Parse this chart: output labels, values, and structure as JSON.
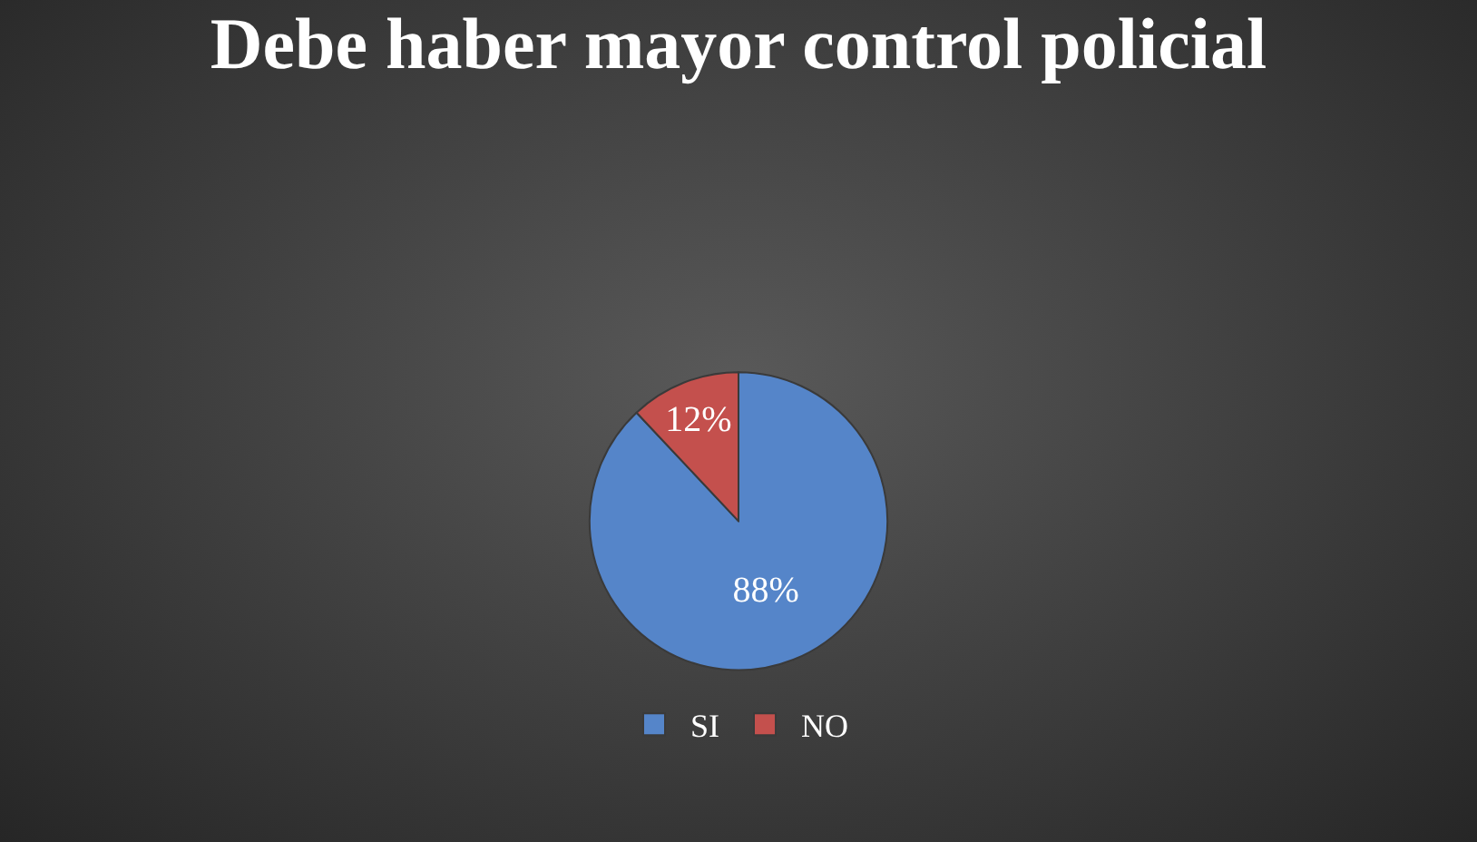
{
  "chart_data": {
    "type": "pie",
    "title": "Debe haber mayor control policial",
    "categories": [
      "SI",
      "NO"
    ],
    "values": [
      88,
      12
    ],
    "colors": [
      "#5585c9",
      "#c4504d"
    ],
    "value_labels": [
      "88%",
      "12%"
    ],
    "legend": "bottom"
  }
}
